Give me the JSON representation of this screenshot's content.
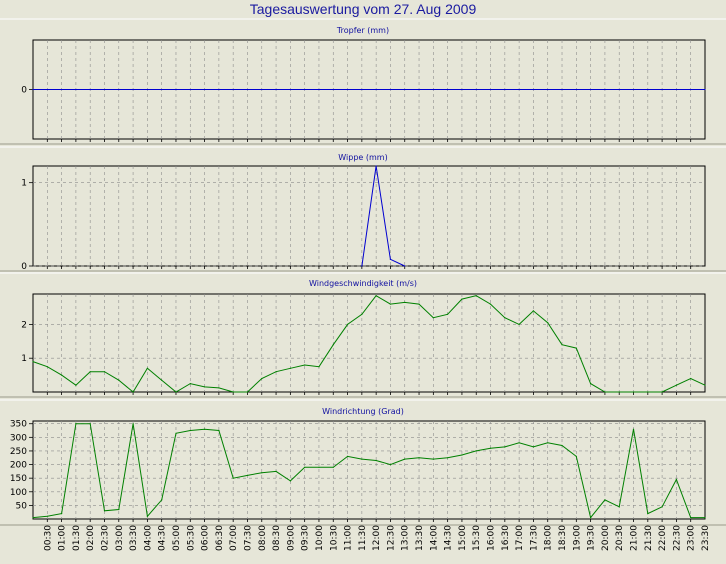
{
  "window_title": "Tagesauswertung vom 27. Aug 2009",
  "colors": {
    "background": "#e6e6d8",
    "blue_series": "#0000d0",
    "green_series": "#008000",
    "grid": "#8c8c8c"
  },
  "chart_data": [
    {
      "type": "line",
      "title": "Tropfer (mm)",
      "ylim": [
        -0.6,
        0.6
      ],
      "yticks": [
        0
      ],
      "grid": true,
      "color": "#0000d0",
      "x": [
        "00:00",
        "00:30",
        "01:00",
        "01:30",
        "02:00",
        "02:30",
        "03:00",
        "03:30",
        "04:00",
        "04:30",
        "05:00",
        "05:30",
        "06:00",
        "06:30",
        "07:00",
        "07:30",
        "08:00",
        "08:30",
        "09:00",
        "09:30",
        "10:00",
        "10:30",
        "11:00",
        "11:30",
        "12:00",
        "12:30",
        "13:00",
        "13:30",
        "14:00",
        "14:30",
        "15:00",
        "15:30",
        "16:00",
        "16:30",
        "17:00",
        "17:30",
        "18:00",
        "18:30",
        "19:00",
        "19:30",
        "20:00",
        "20:30",
        "21:00",
        "21:30",
        "22:00",
        "22:30",
        "23:00",
        "23:30"
      ],
      "values": [
        0,
        0,
        0,
        0,
        0,
        0,
        0,
        0,
        0,
        0,
        0,
        0,
        0,
        0,
        0,
        0,
        0,
        0,
        0,
        0,
        0,
        0,
        0,
        0,
        0,
        0,
        0,
        0,
        0,
        0,
        0,
        0,
        0,
        0,
        0,
        0,
        0,
        0,
        0,
        0,
        0,
        0,
        0,
        0,
        0,
        0,
        0,
        0
      ]
    },
    {
      "type": "line",
      "title": "Wippe (mm)",
      "ylim": [
        0,
        1.2
      ],
      "yticks": [
        0,
        1
      ],
      "grid": true,
      "color": "#0000d0",
      "x": [
        "11:30",
        "12:00",
        "12:30",
        "13:00"
      ],
      "values": [
        0,
        1.2,
        0.08,
        0
      ]
    },
    {
      "type": "line",
      "title": "Windgeschwindigkeit (m/s)",
      "ylim": [
        0,
        2.9
      ],
      "yticks": [
        1,
        2
      ],
      "grid": true,
      "color": "#008000",
      "x": [
        "00:00",
        "00:30",
        "01:00",
        "01:30",
        "02:00",
        "02:30",
        "03:00",
        "03:30",
        "04:00",
        "04:30",
        "05:00",
        "05:30",
        "06:00",
        "06:30",
        "07:00",
        "07:30",
        "08:00",
        "08:30",
        "09:00",
        "09:30",
        "10:00",
        "10:30",
        "11:00",
        "11:30",
        "12:00",
        "12:30",
        "13:00",
        "13:30",
        "14:00",
        "14:30",
        "15:00",
        "15:30",
        "16:00",
        "16:30",
        "17:00",
        "17:30",
        "18:00",
        "18:30",
        "19:00",
        "19:30",
        "20:00",
        "20:30",
        "21:00",
        "21:30",
        "22:00",
        "22:30",
        "23:00",
        "23:30"
      ],
      "values": [
        0.9,
        0.75,
        0.5,
        0.2,
        0.6,
        0.6,
        0.35,
        0,
        0.7,
        0.35,
        0,
        0.25,
        0.15,
        0.12,
        0,
        0,
        0.4,
        0.6,
        0.7,
        0.8,
        0.75,
        1.4,
        2.0,
        2.3,
        2.85,
        2.6,
        2.65,
        2.6,
        2.2,
        2.3,
        2.75,
        2.85,
        2.6,
        2.2,
        2.0,
        2.4,
        2.05,
        1.4,
        1.3,
        0.25,
        0,
        0,
        0,
        0,
        0,
        0.2,
        0.4,
        0.2
      ]
    },
    {
      "type": "line",
      "title": "Windrichtung (Grad)",
      "ylim": [
        0,
        360
      ],
      "yticks": [
        50,
        100,
        150,
        200,
        250,
        300,
        350
      ],
      "grid": true,
      "color": "#008000",
      "x": [
        "00:00",
        "00:30",
        "01:00",
        "01:30",
        "02:00",
        "02:30",
        "03:00",
        "03:30",
        "04:00",
        "04:30",
        "05:00",
        "05:30",
        "06:00",
        "06:30",
        "07:00",
        "07:30",
        "08:00",
        "08:30",
        "09:00",
        "09:30",
        "10:00",
        "10:30",
        "11:00",
        "11:30",
        "12:00",
        "12:30",
        "13:00",
        "13:30",
        "14:00",
        "14:30",
        "15:00",
        "15:30",
        "16:00",
        "16:30",
        "17:00",
        "17:30",
        "18:00",
        "18:30",
        "19:00",
        "19:30",
        "20:00",
        "20:30",
        "21:00",
        "21:30",
        "22:00",
        "22:30",
        "23:00",
        "23:30"
      ],
      "values": [
        5,
        10,
        20,
        350,
        350,
        30,
        35,
        350,
        10,
        70,
        315,
        325,
        330,
        325,
        150,
        160,
        170,
        175,
        140,
        190,
        190,
        190,
        230,
        220,
        215,
        200,
        220,
        225,
        220,
        225,
        235,
        250,
        260,
        265,
        280,
        265,
        280,
        270,
        230,
        5,
        70,
        45,
        330,
        20,
        45,
        145,
        5,
        5
      ],
      "xtick_labels": [
        "00:30",
        "01:00",
        "01:30",
        "02:00",
        "02:30",
        "03:00",
        "03:30",
        "04:00",
        "04:30",
        "05:00",
        "05:30",
        "06:00",
        "06:30",
        "07:00",
        "07:30",
        "08:00",
        "08:30",
        "09:00",
        "09:30",
        "10:00",
        "10:30",
        "11:00",
        "11:30",
        "12:00",
        "12:30",
        "13:00",
        "13:30",
        "14:00",
        "14:30",
        "15:00",
        "15:30",
        "16:00",
        "16:30",
        "17:00",
        "17:30",
        "18:00",
        "18:30",
        "19:00",
        "19:30",
        "20:00",
        "20:30",
        "21:00",
        "21:30",
        "22:00",
        "22:30",
        "23:00",
        "23:30"
      ]
    }
  ]
}
